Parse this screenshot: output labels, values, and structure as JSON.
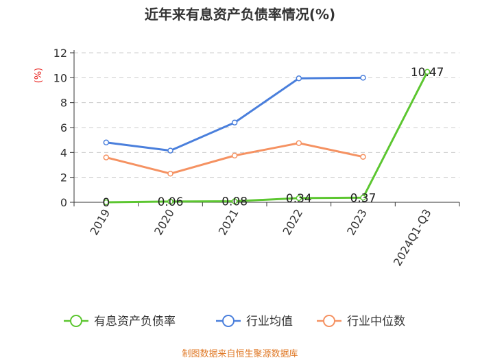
{
  "chart_data": {
    "type": "line",
    "title": "近年来有息资产负债率情况(%)",
    "ylabel": "(%)",
    "xlabel": "",
    "categories": [
      "2019",
      "2020",
      "2021",
      "2022",
      "2023",
      "2024Q1-Q3"
    ],
    "ylim": [
      0,
      12
    ],
    "yticks": [
      0,
      2,
      4,
      6,
      8,
      10,
      12
    ],
    "grid": true,
    "legend_position": "bottom",
    "series": [
      {
        "name": "有息资产负债率",
        "color": "#5cc630",
        "values": [
          0,
          0.06,
          0.08,
          0.34,
          0.37,
          10.47
        ],
        "labels": [
          "0",
          "0.06",
          "0.08",
          "0.34",
          "0.37",
          "10.47"
        ]
      },
      {
        "name": "行业均值",
        "color": "#4a7fdc",
        "values": [
          4.8,
          4.15,
          6.4,
          9.95,
          10.0,
          null
        ]
      },
      {
        "name": "行业中位数",
        "color": "#f59262",
        "values": [
          3.6,
          2.3,
          3.75,
          4.75,
          3.65,
          null
        ]
      }
    ]
  },
  "source": "制图数据来自恒生聚源数据库"
}
